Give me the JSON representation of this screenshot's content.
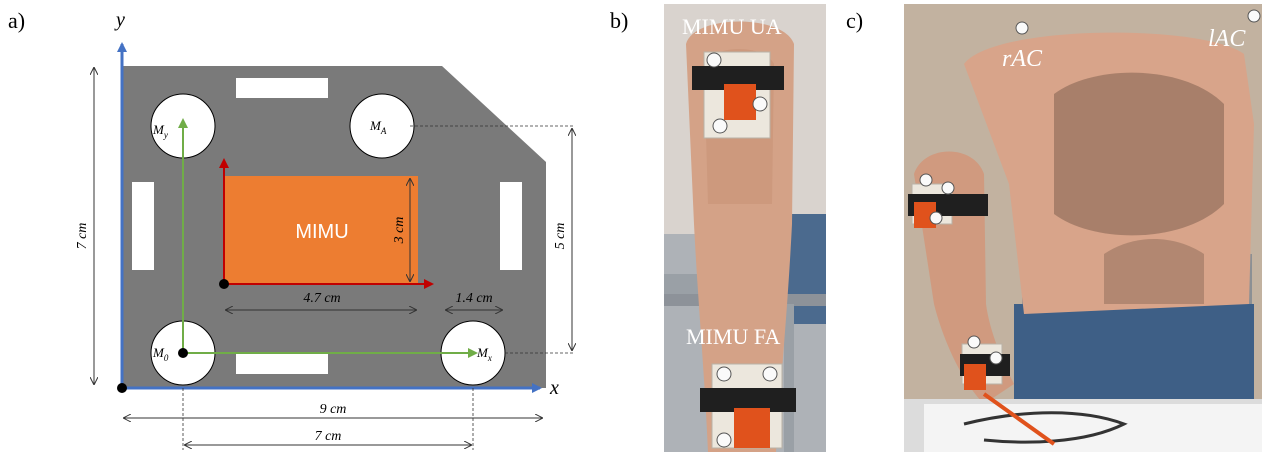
{
  "panels": {
    "a": "a)",
    "b": "b)",
    "c": "c)"
  },
  "diagram": {
    "axis_x": "x",
    "axis_y": "y",
    "mimu_label": "MIMU",
    "markers": {
      "m0": "M",
      "m0_sub": "0",
      "mx": "M",
      "mx_sub": "x",
      "my": "M",
      "my_sub": "y",
      "ma": "M",
      "ma_sub": "A"
    },
    "dims": {
      "height_7": "7 cm",
      "mimu_height": "3 cm",
      "mimu_width": "4.7 cm",
      "offset": "1.4 cm",
      "marker_span_5": "5 cm",
      "total_width": "9 cm",
      "marker_span_7": "7 cm"
    },
    "colors": {
      "board": "#7a7a7a",
      "mimu": "#ed7d31",
      "axis_blue": "#4472c4",
      "frame_green": "#70ad47",
      "frame_red": "#c00000"
    }
  },
  "photo_b": {
    "label_upper": "MIMU UA",
    "label_lower": "MIMU FA"
  },
  "photo_c": {
    "label_right_ac": "rAC",
    "label_left_ac": "lAC"
  }
}
